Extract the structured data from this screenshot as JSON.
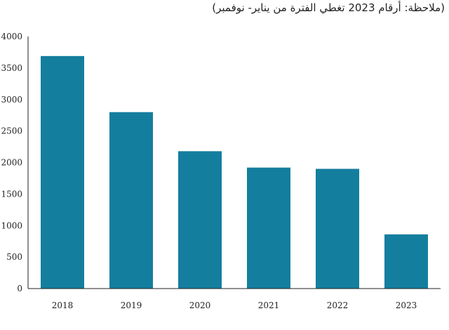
{
  "note": "(ملاحظة: أرقام 2023 تغطي الفترة من يناير- نوفمبر)",
  "colors": {
    "bar": "#147e9e",
    "axis": "#222222"
  },
  "chart_data": {
    "type": "bar",
    "categories": [
      "2018",
      "2019",
      "2020",
      "2021",
      "2022",
      "2023"
    ],
    "values": [
      3690,
      2800,
      2180,
      1920,
      1900,
      860
    ],
    "ylim": [
      0,
      4000
    ],
    "yticks": [
      0,
      500,
      1000,
      1500,
      2000,
      2500,
      3000,
      3500,
      4000
    ],
    "ytick_labels": [
      "0",
      "500",
      "1000",
      "1500",
      "2000",
      "2500",
      "3000",
      "3500",
      "4000"
    ],
    "grid": false,
    "title": "",
    "xlabel": "",
    "ylabel": ""
  }
}
